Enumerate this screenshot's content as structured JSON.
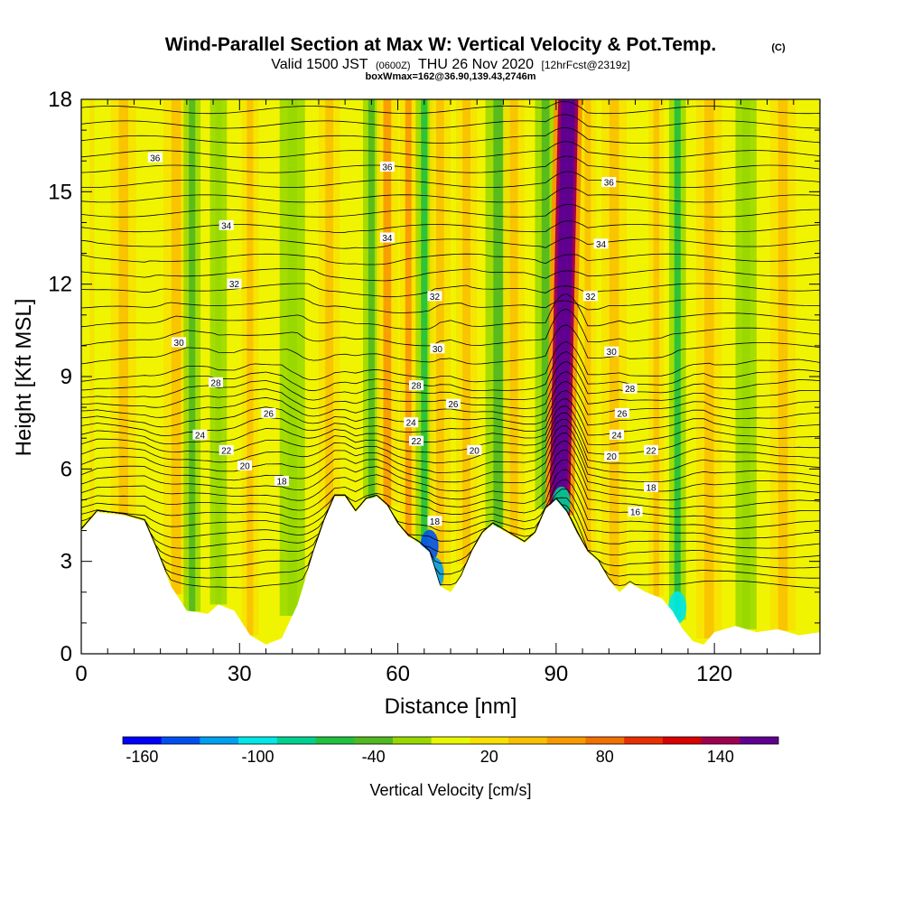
{
  "chart_data": {
    "type": "heatmap",
    "title": "Wind-Parallel Section at Max W: Vertical Velocity & Pot.Temp.",
    "title_mark": "(C)",
    "subtitle": {
      "valid": "Valid 1500 JST",
      "utc": "(0600Z)",
      "date": "THU 26 Nov 2020",
      "forecast": "[12hrFcst@2319z]"
    },
    "box_info": "boxWmax=162@36.90,139.43,2746m",
    "xlabel": "Distance [nm]",
    "ylabel": "Height [Kft MSL]",
    "xlim": [
      0,
      140
    ],
    "ylim": [
      0,
      18
    ],
    "x_ticks": [
      0,
      30,
      60,
      90,
      120
    ],
    "y_ticks": [
      0,
      3,
      6,
      9,
      12,
      15,
      18
    ],
    "colorbar": {
      "label": "Vertical Velocity [cm/s]",
      "tick_labels": [
        "-160",
        "-100",
        "-40",
        "20",
        "80",
        "140"
      ],
      "tick_values": [
        -160,
        -100,
        -40,
        20,
        80,
        140
      ],
      "min": -170,
      "max": 170,
      "colors": [
        "#0000ff",
        "#0050f0",
        "#00a0f0",
        "#00e8e8",
        "#00d090",
        "#20c040",
        "#50b820",
        "#98d800",
        "#e8f800",
        "#f8e000",
        "#f8c000",
        "#f89800",
        "#f07000",
        "#e83000",
        "#d80000",
        "#a00050",
        "#600090"
      ]
    },
    "velocity_core": {
      "x": 92,
      "bottom": 4.5,
      "top": 18,
      "max": 162
    },
    "terrain": [
      [
        0,
        4.0
      ],
      [
        3,
        4.6
      ],
      [
        8,
        4.5
      ],
      [
        12,
        4.3
      ],
      [
        14,
        3.5
      ],
      [
        17,
        2.2
      ],
      [
        20,
        1.4
      ],
      [
        24,
        1.3
      ],
      [
        26,
        1.6
      ],
      [
        29,
        1.4
      ],
      [
        32,
        0.6
      ],
      [
        35,
        0.3
      ],
      [
        38,
        0.5
      ],
      [
        41,
        1.6
      ],
      [
        44,
        3.3
      ],
      [
        46,
        4.3
      ],
      [
        48,
        5.1
      ],
      [
        50,
        5.1
      ],
      [
        52,
        4.6
      ],
      [
        54,
        5.0
      ],
      [
        56,
        5.1
      ],
      [
        58,
        4.8
      ],
      [
        60,
        4.2
      ],
      [
        62,
        3.8
      ],
      [
        64,
        3.6
      ],
      [
        66,
        3.3
      ],
      [
        68,
        2.2
      ],
      [
        70,
        2.0
      ],
      [
        72,
        2.5
      ],
      [
        74,
        3.3
      ],
      [
        76,
        3.9
      ],
      [
        78,
        4.2
      ],
      [
        80,
        4.0
      ],
      [
        82,
        3.8
      ],
      [
        84,
        3.6
      ],
      [
        86,
        3.9
      ],
      [
        88,
        4.7
      ],
      [
        90,
        5.0
      ],
      [
        92,
        4.6
      ],
      [
        94,
        3.9
      ],
      [
        96,
        3.3
      ],
      [
        98,
        3.0
      ],
      [
        100,
        2.4
      ],
      [
        102,
        2.0
      ],
      [
        104,
        2.3
      ],
      [
        107,
        2.0
      ],
      [
        110,
        1.8
      ],
      [
        112,
        1.4
      ],
      [
        114,
        0.8
      ],
      [
        116,
        0.4
      ],
      [
        118,
        0.3
      ],
      [
        120,
        0.7
      ],
      [
        124,
        0.9
      ],
      [
        128,
        0.7
      ],
      [
        132,
        0.8
      ],
      [
        136,
        0.6
      ],
      [
        140,
        0.7
      ]
    ],
    "updraft_bands": [
      {
        "x": 2,
        "width": 1.5,
        "w": 18
      },
      {
        "x": 8,
        "width": 3,
        "w": 40
      },
      {
        "x": 18,
        "width": 3,
        "w": 48
      },
      {
        "x": 21,
        "width": 2,
        "w": -32
      },
      {
        "x": 26,
        "width": 2,
        "w": -30
      },
      {
        "x": 32,
        "width": 2,
        "w": 42
      },
      {
        "x": 40,
        "width": 3,
        "w": -28
      },
      {
        "x": 47,
        "width": 2.5,
        "w": 36
      },
      {
        "x": 55,
        "width": 2,
        "w": -45
      },
      {
        "x": 58,
        "width": 2.5,
        "w": 50
      },
      {
        "x": 62,
        "width": 2,
        "w": 58
      },
      {
        "x": 65,
        "width": 2,
        "w": -60
      },
      {
        "x": 68,
        "width": 2.5,
        "w": 44
      },
      {
        "x": 73,
        "width": 2.5,
        "w": 42
      },
      {
        "x": 79,
        "width": 3,
        "w": -40
      },
      {
        "x": 82,
        "width": 2.5,
        "w": 40
      },
      {
        "x": 88,
        "width": 2.5,
        "w": -45
      },
      {
        "x": 96,
        "width": 2,
        "w": 35
      },
      {
        "x": 101,
        "width": 3,
        "w": 48
      },
      {
        "x": 109,
        "width": 1.8,
        "w": 40
      },
      {
        "x": 113,
        "width": 2,
        "w": -55
      },
      {
        "x": 119,
        "width": 3,
        "w": 42
      },
      {
        "x": 126,
        "width": 2.5,
        "w": -30
      },
      {
        "x": 133,
        "width": 3,
        "w": 45
      }
    ],
    "theta_contour_labels": [
      "16",
      "18",
      "20",
      "22",
      "24",
      "26",
      "28",
      "30",
      "32",
      "34",
      "36"
    ],
    "contour_labels": [
      {
        "text": "36",
        "x": 14,
        "y": 16.1
      },
      {
        "text": "36",
        "x": 58,
        "y": 15.8
      },
      {
        "text": "36",
        "x": 100,
        "y": 15.3
      },
      {
        "text": "34",
        "x": 27.5,
        "y": 13.9
      },
      {
        "text": "34",
        "x": 58,
        "y": 13.5
      },
      {
        "text": "34",
        "x": 98.5,
        "y": 13.3
      },
      {
        "text": "32",
        "x": 29,
        "y": 12.0
      },
      {
        "text": "32",
        "x": 67,
        "y": 11.6
      },
      {
        "text": "32",
        "x": 96.5,
        "y": 11.6
      },
      {
        "text": "30",
        "x": 18.5,
        "y": 10.1
      },
      {
        "text": "30",
        "x": 67.5,
        "y": 9.9
      },
      {
        "text": "30",
        "x": 100.5,
        "y": 9.8
      },
      {
        "text": "28",
        "x": 25.5,
        "y": 8.8
      },
      {
        "text": "28",
        "x": 63.5,
        "y": 8.7
      },
      {
        "text": "28",
        "x": 104,
        "y": 8.6
      },
      {
        "text": "26",
        "x": 35.5,
        "y": 7.8
      },
      {
        "text": "26",
        "x": 70.5,
        "y": 8.1
      },
      {
        "text": "26",
        "x": 102.5,
        "y": 7.8
      },
      {
        "text": "24",
        "x": 22.5,
        "y": 7.1
      },
      {
        "text": "24",
        "x": 62.5,
        "y": 7.5
      },
      {
        "text": "24",
        "x": 101.5,
        "y": 7.1
      },
      {
        "text": "22",
        "x": 27.5,
        "y": 6.6
      },
      {
        "text": "22",
        "x": 63.5,
        "y": 6.9
      },
      {
        "text": "22",
        "x": 108,
        "y": 6.6
      },
      {
        "text": "20",
        "x": 31,
        "y": 6.1
      },
      {
        "text": "20",
        "x": 74.5,
        "y": 6.6
      },
      {
        "text": "20",
        "x": 100.5,
        "y": 6.4
      },
      {
        "text": "18",
        "x": 38,
        "y": 5.6
      },
      {
        "text": "18",
        "x": 67,
        "y": 4.3
      },
      {
        "text": "18",
        "x": 108,
        "y": 5.4
      },
      {
        "text": "16",
        "x": 105,
        "y": 4.6
      }
    ],
    "contour_count": 40,
    "grid": false,
    "legend": "bottom"
  }
}
